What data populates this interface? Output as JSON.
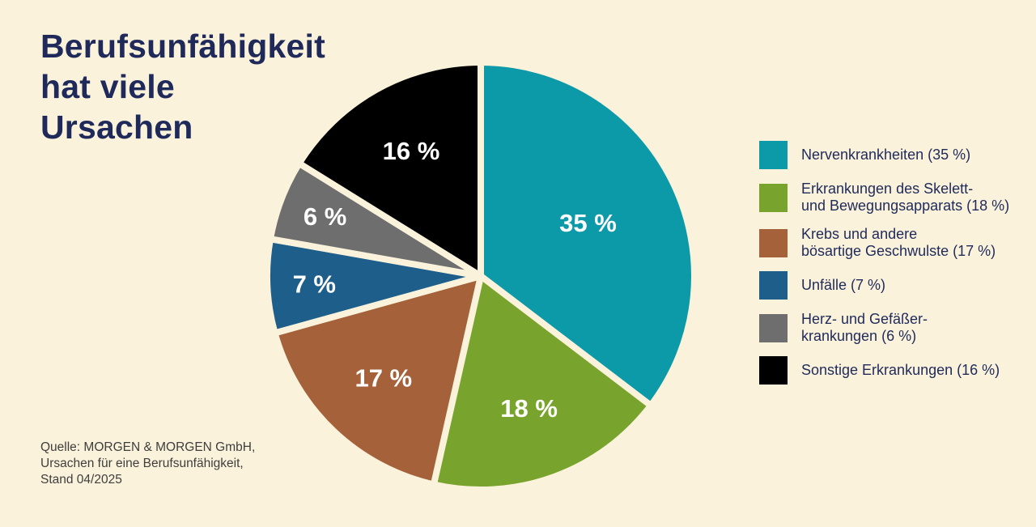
{
  "page": {
    "background_color": "#FAF2DB",
    "title_color": "#1F2A5B",
    "source_color": "#3E3E3D",
    "pie_label_color": "#FFFFFF"
  },
  "title": {
    "lines": [
      "Berufsunfähigkeit",
      "hat viele",
      "Ursachen"
    ]
  },
  "source": {
    "lines": [
      "Quelle: MORGEN & MORGEN GmbH,",
      "Ursachen für eine Berufsunfähigkeit,",
      "Stand 04/2025"
    ]
  },
  "chart_data": {
    "type": "pie",
    "title": "Berufsunfähigkeit hat viele Ursachen",
    "start_angle_deg": 0,
    "direction": "clockwise",
    "separator_color": "#FAF2DB",
    "separator_width": 8,
    "legend_position": "right",
    "slices": [
      {
        "label": "Nervenkrankheiten",
        "value": 35,
        "pct_label": "35 %",
        "color": "#0D9AA8",
        "label_radius": 0.56
      },
      {
        "label": "Erkrankungen des Skelett- und Bewegungsapparats",
        "value": 18,
        "pct_label": "18 %",
        "color": "#78A42D",
        "label_radius": 0.66
      },
      {
        "label": "Krebs und andere bösartige Geschwulste",
        "value": 17,
        "pct_label": "17 %",
        "color": "#A5613A",
        "label_radius": 0.66
      },
      {
        "label": "Unfälle",
        "value": 7,
        "pct_label": "7 %",
        "color": "#1E5E8B",
        "label_radius": 0.78
      },
      {
        "label": "Herz- und Gefäßerkrankungen",
        "value": 6,
        "pct_label": "6 %",
        "color": "#6E6E6E",
        "label_radius": 0.78
      },
      {
        "label": "Sonstige Erkrankungen",
        "value": 16,
        "pct_label": "16 %",
        "color": "#000000",
        "label_radius": 0.67
      }
    ],
    "legend": [
      {
        "lines": [
          "Nervenkrankheiten (35 %)"
        ],
        "color": "#0D9AA8"
      },
      {
        "lines": [
          "Erkrankungen des Skelett-",
          "und Bewegungsapparats (18 %)"
        ],
        "color": "#78A42D"
      },
      {
        "lines": [
          "Krebs und andere",
          "bösartige Geschwulste (17 %)"
        ],
        "color": "#A5613A"
      },
      {
        "lines": [
          "Unfälle (7 %)"
        ],
        "color": "#1E5E8B"
      },
      {
        "lines": [
          "Herz- und Gefäßer-",
          "krankungen (6 %)"
        ],
        "color": "#6E6E6E"
      },
      {
        "lines": [
          "Sonstige Erkrankungen (16 %)"
        ],
        "color": "#000000"
      }
    ]
  }
}
